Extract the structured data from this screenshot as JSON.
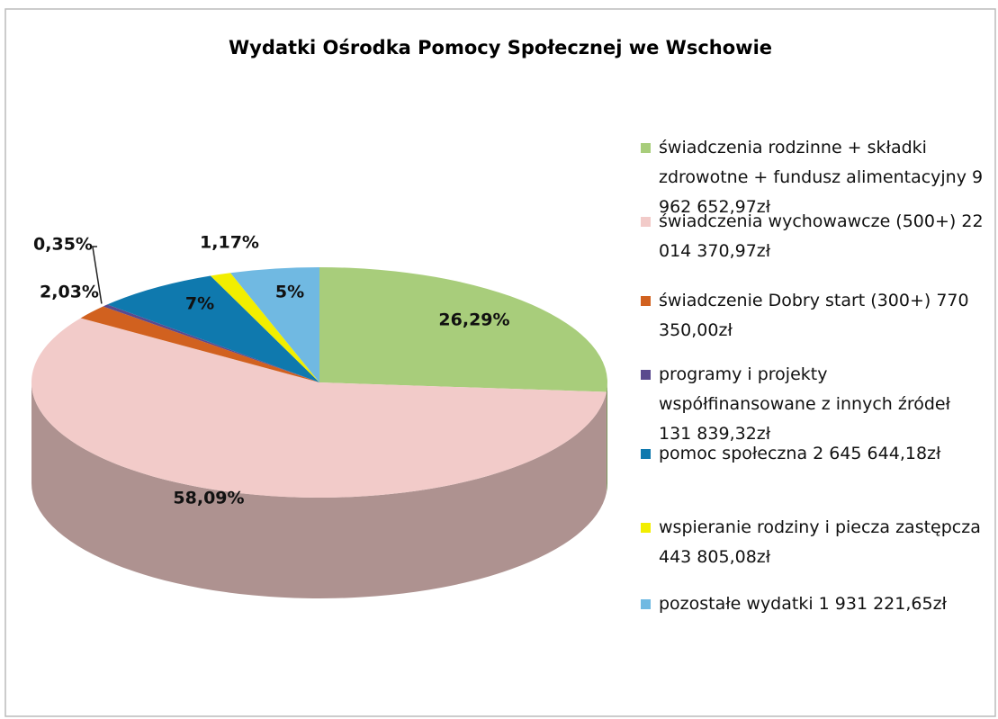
{
  "chart_data": {
    "type": "pie",
    "title": "Wydatki Ośrodka Pomocy Społecznej we Wschowie",
    "categories": [
      "świadczenia rodzinne + składki zdrowotne + fundusz alimentacyjny  9 962 652,97zł",
      "świadczenia wychowawcze (500+) 22 014 370,97zł",
      "świadczenie Dobry start (300+) 770 350,00zł",
      "programy i projekty współfinansowane z innych źródeł 131 839,32zł",
      "pomoc społeczna 2 645 644,18zł",
      "wspieranie rodziny i piecza zastępcza 443 805,08zł",
      "pozostałe wydatki 1 931 221,65zł"
    ],
    "values": [
      26.29,
      58.09,
      2.03,
      0.35,
      7,
      1.17,
      5
    ],
    "value_labels": [
      "26,29%",
      "58,09%",
      "2,03%",
      "0,35%",
      "7%",
      "1,17%",
      "5%"
    ],
    "colors": [
      "#a8cd7b",
      "#f2cbc9",
      "#d1611f",
      "#5a4a8e",
      "#0f79ae",
      "#f2ee00",
      "#70b9e2"
    ],
    "legend": "right"
  }
}
